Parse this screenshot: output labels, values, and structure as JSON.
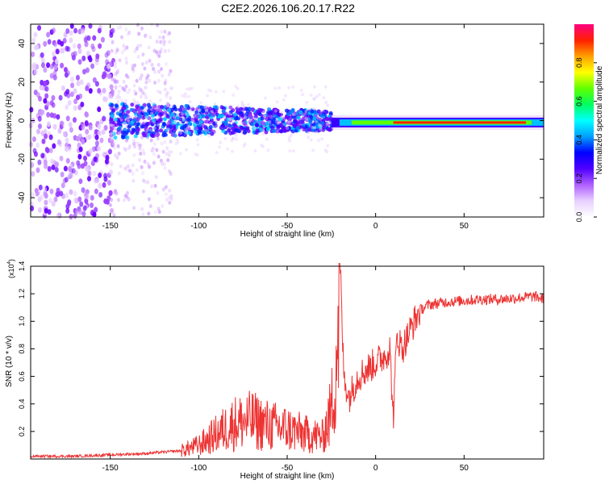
{
  "title": "C2E2.2026.106.20.17.R22",
  "chart_data": [
    {
      "type": "heatmap",
      "xlabel": "Height of straight line (km)",
      "ylabel": "Frequency (Hz)",
      "xlim": [
        -195,
        95
      ],
      "ylim": [
        -50,
        50
      ],
      "x_ticks": [
        -150,
        -100,
        -50,
        0,
        50
      ],
      "y_ticks": [
        -40,
        -20,
        0,
        20,
        40
      ],
      "colorbar": {
        "label": "Normalized spectral amplitude",
        "range": [
          0,
          1
        ],
        "ticks": [
          "0.0",
          "0.2",
          "0.4",
          "0.6",
          "0.8"
        ],
        "colors": [
          "#ffffff",
          "#e8d0ff",
          "#b060ff",
          "#5000ff",
          "#0000ff",
          "#00a0ff",
          "#00ffff",
          "#00ff60",
          "#60ff00",
          "#ffff00",
          "#ffa000",
          "#ff2000",
          "#ff0080"
        ]
      },
      "description_segments": [
        {
          "x_range": [
            -195,
            -150
          ],
          "behavior": "noise-dominated, scattered purple speckle"
        },
        {
          "x_range": [
            -150,
            -25
          ],
          "behavior": "broadband purple/blue band around 0 Hz, width ~±10 Hz"
        },
        {
          "x_range": [
            -25,
            95
          ],
          "behavior": "narrow high-amplitude line near 0 Hz (red core)"
        }
      ]
    },
    {
      "type": "line",
      "xlabel": "Height of straight line (km)",
      "ylabel": "SNR (10 * v/v)",
      "yscale_label": "(x10",
      "yscale_exp": "4",
      "yscale_close": ")",
      "xlim": [
        -195,
        95
      ],
      "ylim": [
        0,
        1.4
      ],
      "x_ticks": [
        -150,
        -100,
        -50,
        0,
        50
      ],
      "y_ticks": [
        0.2,
        0.4,
        0.6,
        0.8,
        1.0,
        1.2,
        1.4
      ],
      "y_tick_labels": [
        "0.2",
        "0.4",
        "0.6",
        "0.8",
        "1.0",
        "1.2",
        "1.4"
      ],
      "series": [
        {
          "name": "SNR",
          "color": "#ee3333",
          "x": [
            -195,
            -170,
            -150,
            -130,
            -110,
            -100,
            -90,
            -80,
            -70,
            -60,
            -50,
            -40,
            -30,
            -25,
            -22,
            -20,
            -18,
            -15,
            -10,
            -5,
            0,
            5,
            8,
            10,
            12,
            15,
            20,
            25,
            30,
            40,
            50,
            60,
            70,
            80,
            90,
            95
          ],
          "y": [
            0.02,
            0.02,
            0.03,
            0.04,
            0.06,
            0.1,
            0.18,
            0.26,
            0.28,
            0.24,
            0.22,
            0.18,
            0.16,
            0.35,
            0.8,
            1.4,
            0.6,
            0.45,
            0.6,
            0.65,
            0.7,
            0.75,
            0.8,
            0.3,
            0.9,
            0.8,
            0.95,
            1.08,
            1.12,
            1.14,
            1.15,
            1.16,
            1.16,
            1.17,
            1.18,
            1.16
          ]
        }
      ]
    }
  ]
}
